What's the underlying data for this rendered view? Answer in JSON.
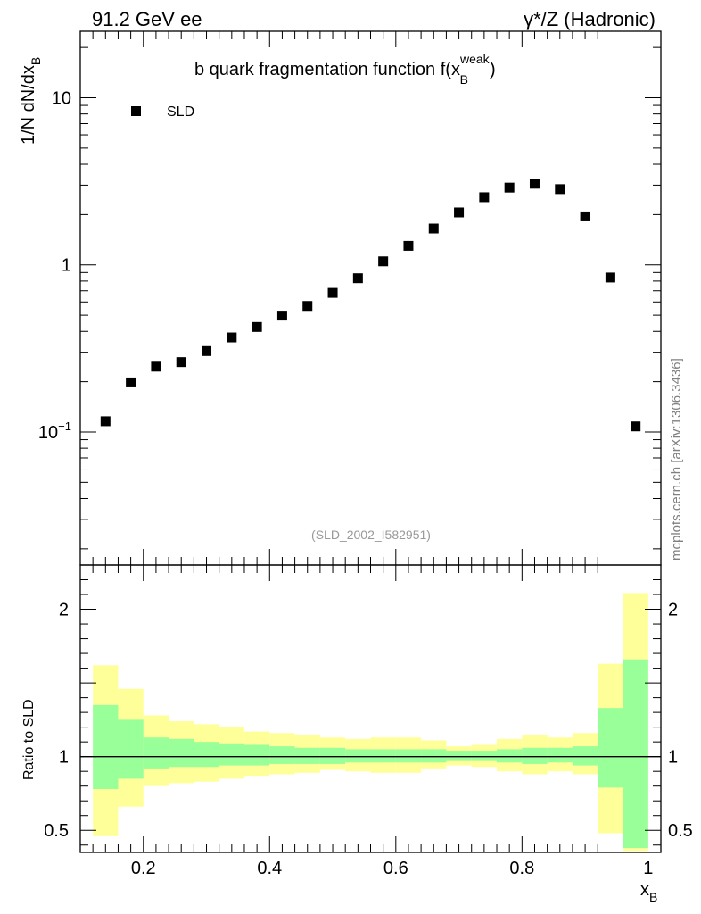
{
  "header": {
    "left_label": "91.2 GeV ee",
    "right_label": "γ*/Z (Hadronic)"
  },
  "watermark": "mcplots.cern.ch [arXiv:1306.3436]",
  "chart_data": [
    {
      "panel": "main",
      "type": "scatter",
      "title": "b quark fragmentation function f(x",
      "title_sup": "weak",
      "title_sub": "B",
      "title_close": ")",
      "ylabel": "1/N  dN/dx",
      "ylabel_sub": "B",
      "yscale": "log",
      "ylim": [
        0.016,
        25
      ],
      "xlim": [
        0.1,
        1.02
      ],
      "ytick_labels": [
        {
          "value": 10,
          "base": "10",
          "exp": ""
        },
        {
          "value": 1,
          "base": "1",
          "exp": ""
        },
        {
          "value": 0.1,
          "base": "10",
          "exp": "−1"
        }
      ],
      "legend": {
        "label": "SLD",
        "placement": "top-left"
      },
      "analysis_label": "(SLD_2002_I582951)",
      "series": [
        {
          "name": "SLD",
          "marker": "square",
          "color": "#000000",
          "x": [
            0.14,
            0.18,
            0.22,
            0.26,
            0.3,
            0.34,
            0.38,
            0.42,
            0.46,
            0.5,
            0.54,
            0.58,
            0.62,
            0.66,
            0.7,
            0.74,
            0.78,
            0.82,
            0.86,
            0.9,
            0.94,
            0.98
          ],
          "y": [
            0.116,
            0.198,
            0.246,
            0.262,
            0.305,
            0.368,
            0.425,
            0.497,
            0.568,
            0.68,
            0.832,
            1.05,
            1.3,
            1.65,
            2.06,
            2.54,
            2.9,
            3.06,
            2.84,
            1.95,
            0.84,
            0.108
          ]
        }
      ]
    },
    {
      "panel": "ratio",
      "type": "area",
      "ylabel": "Ratio to SLD",
      "xlabel": "x",
      "xlabel_sub": "B",
      "ylim": [
        0.35,
        2.3
      ],
      "xlim": [
        0.1,
        1.02
      ],
      "xtick_labels": [
        {
          "value": 0.2,
          "label": "0.2"
        },
        {
          "value": 0.4,
          "label": "0.4"
        },
        {
          "value": 0.6,
          "label": "0.6"
        },
        {
          "value": 0.8,
          "label": "0.8"
        },
        {
          "value": 1.0,
          "label": "1"
        }
      ],
      "ytick_labels": [
        {
          "value": 2,
          "label": "2"
        },
        {
          "value": 1,
          "label": "1"
        },
        {
          "value": 0.5,
          "label": "0.5"
        }
      ],
      "reference_line": 1,
      "bin_edges": [
        0.12,
        0.16,
        0.2,
        0.24,
        0.28,
        0.32,
        0.36,
        0.4,
        0.44,
        0.48,
        0.52,
        0.56,
        0.6,
        0.64,
        0.68,
        0.72,
        0.76,
        0.8,
        0.84,
        0.88,
        0.92,
        0.96,
        1.0
      ],
      "bands": [
        {
          "name": "total uncertainty",
          "color": "#ffff99",
          "lo": [
            0.46,
            0.66,
            0.8,
            0.82,
            0.83,
            0.85,
            0.87,
            0.88,
            0.89,
            0.91,
            0.9,
            0.89,
            0.89,
            0.92,
            0.94,
            0.93,
            0.9,
            0.88,
            0.9,
            0.88,
            0.48,
            0.36
          ],
          "hi": [
            1.62,
            1.46,
            1.28,
            1.24,
            1.22,
            1.2,
            1.17,
            1.16,
            1.15,
            1.13,
            1.12,
            1.13,
            1.13,
            1.11,
            1.07,
            1.08,
            1.12,
            1.15,
            1.13,
            1.16,
            1.63,
            2.11
          ]
        },
        {
          "name": "statistical uncertainty",
          "color": "#99ff99",
          "lo": [
            0.78,
            0.85,
            0.92,
            0.93,
            0.93,
            0.94,
            0.94,
            0.95,
            0.95,
            0.95,
            0.96,
            0.96,
            0.96,
            0.96,
            0.97,
            0.97,
            0.96,
            0.95,
            0.96,
            0.94,
            0.79,
            0.38
          ],
          "hi": [
            1.35,
            1.25,
            1.13,
            1.12,
            1.1,
            1.09,
            1.08,
            1.07,
            1.06,
            1.06,
            1.05,
            1.05,
            1.05,
            1.05,
            1.04,
            1.04,
            1.05,
            1.06,
            1.06,
            1.07,
            1.33,
            1.66
          ]
        }
      ]
    }
  ]
}
